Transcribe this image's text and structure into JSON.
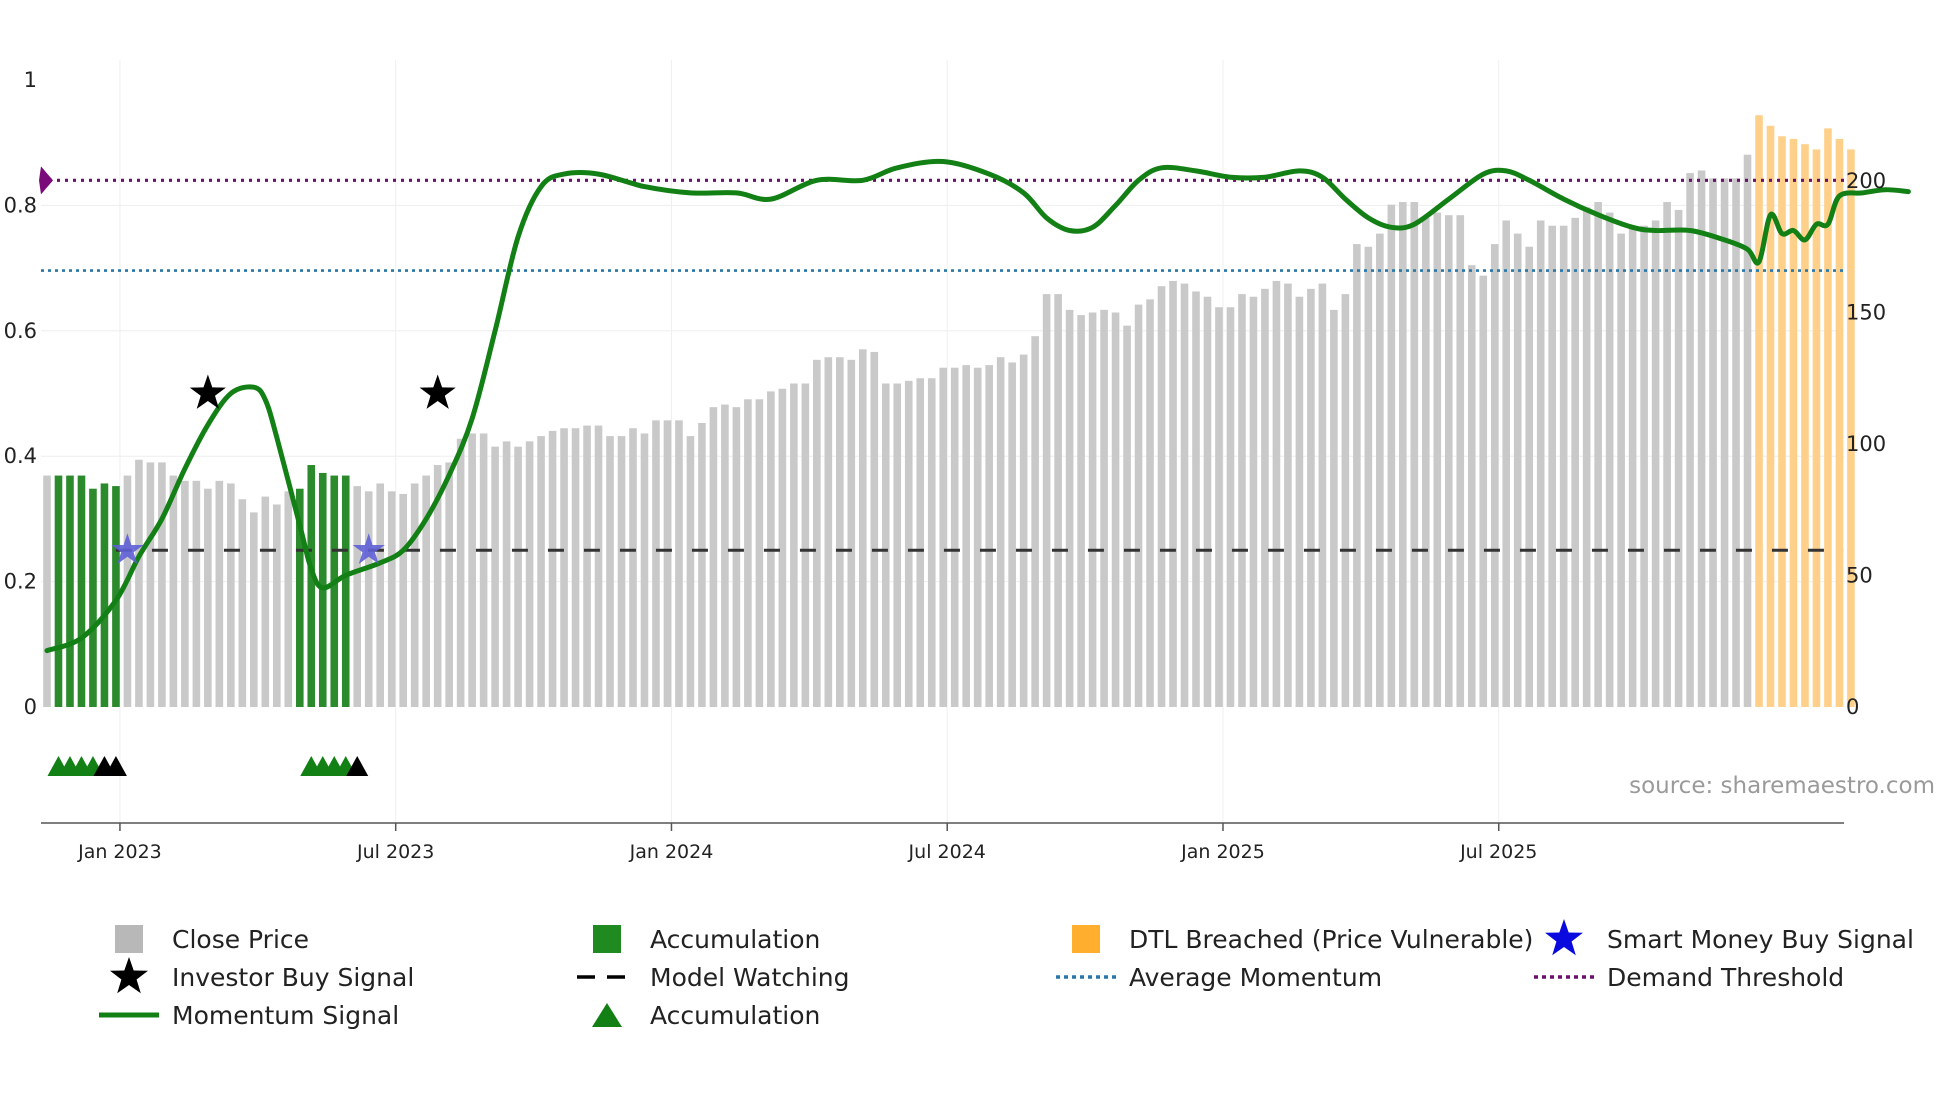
{
  "chart_data": {
    "type": "bar+line",
    "source_label": "source: sharemaestro.com",
    "x_ticks": [
      "Jan 2023",
      "Jul 2023",
      "Jan 2024",
      "Jul 2024",
      "Jan 2025",
      "Jul 2025"
    ],
    "y_left": {
      "range": [
        0,
        1
      ],
      "ticks": [
        "0",
        "0.2",
        "0.4",
        "0.6",
        "0.8",
        "1"
      ]
    },
    "y_right": {
      "range": [
        0,
        236
      ],
      "ticks": [
        "0",
        "50",
        "100",
        "150",
        "200"
      ]
    },
    "demand_threshold": 0.84,
    "average_momentum": 0.696,
    "model_watching_level": 0.25,
    "close_prices": [
      88,
      88,
      88,
      88,
      83,
      85,
      84,
      88,
      94,
      93,
      93,
      88,
      86,
      86,
      83,
      86,
      85,
      79,
      74,
      80,
      77,
      82,
      83,
      92,
      89,
      88,
      88,
      84,
      82,
      85,
      82,
      81,
      85,
      88,
      92,
      93,
      102,
      104,
      104,
      99,
      101,
      99,
      101,
      103,
      105,
      106,
      106,
      107,
      107,
      103,
      103,
      106,
      104,
      109,
      109,
      109,
      103,
      108,
      114,
      115,
      114,
      117,
      117,
      120,
      121,
      123,
      123,
      132,
      133,
      133,
      132,
      136,
      135,
      123,
      123,
      124,
      125,
      125,
      129,
      129,
      130,
      129,
      130,
      133,
      131,
      134,
      141,
      157,
      157,
      151,
      149,
      150,
      151,
      150,
      145,
      153,
      155,
      160,
      162,
      161,
      158,
      156,
      152,
      152,
      157,
      156,
      159,
      162,
      161,
      156,
      159,
      161,
      151,
      157,
      176,
      175,
      180,
      191,
      192,
      192,
      186,
      188,
      187,
      187,
      168,
      164,
      176,
      185,
      180,
      175,
      185,
      183,
      183,
      186,
      190,
      192,
      188,
      180,
      183,
      183,
      185,
      192,
      189,
      203,
      204,
      201,
      201,
      201,
      210,
      225,
      221,
      217,
      216,
      214,
      212,
      220,
      216,
      212
    ],
    "accumulation_ranges": [
      [
        1,
        6
      ],
      [
        22,
        26
      ]
    ],
    "breached_start": 149,
    "momentum_signal": [
      {
        "i": 0,
        "v": 0.09
      },
      {
        "i": 3,
        "v": 0.11
      },
      {
        "i": 6,
        "v": 0.17
      },
      {
        "i": 8,
        "v": 0.24
      },
      {
        "i": 10,
        "v": 0.3
      },
      {
        "i": 12,
        "v": 0.38
      },
      {
        "i": 14,
        "v": 0.45
      },
      {
        "i": 16,
        "v": 0.5
      },
      {
        "i": 18,
        "v": 0.51
      },
      {
        "i": 19,
        "v": 0.49
      },
      {
        "i": 20,
        "v": 0.43
      },
      {
        "i": 22,
        "v": 0.29
      },
      {
        "i": 23,
        "v": 0.22
      },
      {
        "i": 24,
        "v": 0.19
      },
      {
        "i": 26,
        "v": 0.21
      },
      {
        "i": 29,
        "v": 0.23
      },
      {
        "i": 31,
        "v": 0.25
      },
      {
        "i": 33,
        "v": 0.3
      },
      {
        "i": 35,
        "v": 0.37
      },
      {
        "i": 37,
        "v": 0.46
      },
      {
        "i": 39,
        "v": 0.6
      },
      {
        "i": 41,
        "v": 0.75
      },
      {
        "i": 43,
        "v": 0.83
      },
      {
        "i": 45,
        "v": 0.85
      },
      {
        "i": 48,
        "v": 0.85
      },
      {
        "i": 52,
        "v": 0.83
      },
      {
        "i": 56,
        "v": 0.82
      },
      {
        "i": 60,
        "v": 0.82
      },
      {
        "i": 63,
        "v": 0.81
      },
      {
        "i": 67,
        "v": 0.84
      },
      {
        "i": 71,
        "v": 0.84
      },
      {
        "i": 74,
        "v": 0.86
      },
      {
        "i": 78,
        "v": 0.87
      },
      {
        "i": 82,
        "v": 0.85
      },
      {
        "i": 85,
        "v": 0.82
      },
      {
        "i": 87,
        "v": 0.78
      },
      {
        "i": 89,
        "v": 0.76
      },
      {
        "i": 91,
        "v": 0.765
      },
      {
        "i": 93,
        "v": 0.8
      },
      {
        "i": 95,
        "v": 0.84
      },
      {
        "i": 97,
        "v": 0.86
      },
      {
        "i": 100,
        "v": 0.855
      },
      {
        "i": 103,
        "v": 0.845
      },
      {
        "i": 106,
        "v": 0.845
      },
      {
        "i": 109,
        "v": 0.855
      },
      {
        "i": 111,
        "v": 0.845
      },
      {
        "i": 113,
        "v": 0.81
      },
      {
        "i": 115,
        "v": 0.78
      },
      {
        "i": 117,
        "v": 0.765
      },
      {
        "i": 119,
        "v": 0.77
      },
      {
        "i": 122,
        "v": 0.81
      },
      {
        "i": 125,
        "v": 0.85
      },
      {
        "i": 127,
        "v": 0.855
      },
      {
        "i": 129,
        "v": 0.84
      },
      {
        "i": 132,
        "v": 0.81
      },
      {
        "i": 135,
        "v": 0.785
      },
      {
        "i": 138,
        "v": 0.765
      },
      {
        "i": 140,
        "v": 0.76
      },
      {
        "i": 143,
        "v": 0.76
      },
      {
        "i": 146,
        "v": 0.745
      },
      {
        "i": 148,
        "v": 0.73
      },
      {
        "i": 149,
        "v": 0.71
      },
      {
        "i": 150,
        "v": 0.785
      },
      {
        "i": 151,
        "v": 0.755
      },
      {
        "i": 152,
        "v": 0.76
      },
      {
        "i": 153,
        "v": 0.745
      },
      {
        "i": 154,
        "v": 0.77
      },
      {
        "i": 155,
        "v": 0.77
      },
      {
        "i": 156,
        "v": 0.815
      },
      {
        "i": 158,
        "v": 0.82
      },
      {
        "i": 160,
        "v": 0.825
      },
      {
        "i": 162,
        "v": 0.822
      }
    ],
    "investor_buy_signals": [
      {
        "i": 14,
        "v": 0.5
      },
      {
        "i": 34,
        "v": 0.5
      }
    ],
    "smart_money_buy_signals": [
      {
        "i": 7,
        "v": 0.25
      },
      {
        "i": 28,
        "v": 0.25
      }
    ],
    "accumulation_markers": [
      {
        "i": 1,
        "c": "green"
      },
      {
        "i": 2,
        "c": "green"
      },
      {
        "i": 3,
        "c": "green"
      },
      {
        "i": 4,
        "c": "green"
      },
      {
        "i": 5,
        "c": "black"
      },
      {
        "i": 6,
        "c": "black"
      },
      {
        "i": 23,
        "c": "green"
      },
      {
        "i": 24,
        "c": "green"
      },
      {
        "i": 25,
        "c": "green"
      },
      {
        "i": 26,
        "c": "green"
      },
      {
        "i": 27,
        "c": "black"
      }
    ],
    "legend": [
      {
        "label": "Close Price",
        "kind": "square",
        "color": "#b8b8b8"
      },
      {
        "label": "Investor Buy Signal",
        "kind": "star",
        "color": "#000000"
      },
      {
        "label": "Momentum Signal",
        "kind": "line",
        "color": "#138015"
      },
      {
        "label": "Accumulation",
        "kind": "square",
        "color": "#1f8a1f"
      },
      {
        "label": "Model Watching",
        "kind": "dash",
        "color": "#000000"
      },
      {
        "label": "Accumulation",
        "kind": "triangle",
        "color": "#138015"
      },
      {
        "label": "DTL Breached (Price Vulnerable)",
        "kind": "square",
        "color": "#ffae2e"
      },
      {
        "label": "Average Momentum",
        "kind": "dot",
        "color": "#2a77a8"
      },
      {
        "label": "Smart Money Buy Signal",
        "kind": "star",
        "color": "#0a0adf"
      },
      {
        "label": "Demand Threshold",
        "kind": "dot",
        "color": "#6b0f6b"
      }
    ],
    "colors": {
      "close": "#c9c9c9",
      "accumulation": "#2b8a2b",
      "breached": "#ffd08a",
      "momentum": "#138015",
      "demand": "#6b0f6b",
      "average": "#2a77a8",
      "watching": "#333333",
      "smart_money": "#5f5fd6"
    }
  }
}
